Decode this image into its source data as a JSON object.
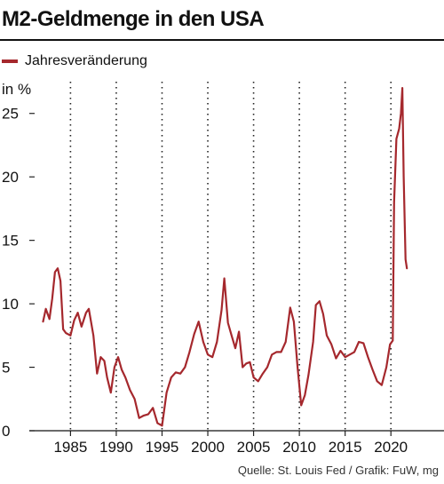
{
  "header": {
    "title": "M2-Geldmenge in den USA"
  },
  "footer": {
    "source": "Quelle: St. Louis Fed / Grafik: FuW, mg"
  },
  "chart_data": {
    "type": "line",
    "title": "M2-Geldmenge in den USA",
    "ylabel": "in %",
    "xlabel": "",
    "xlim": [
      1980.5,
      2025.8
    ],
    "ylim": [
      0,
      27.5
    ],
    "x_ticks": [
      "1985",
      "1990",
      "1995",
      "2000",
      "2005",
      "2010",
      "2015",
      "2020"
    ],
    "y_ticks": [
      "0",
      "5",
      "10",
      "15",
      "20",
      "25"
    ],
    "grid": "vertical-dotted",
    "legend_position": "top-left",
    "color": "#a5282d",
    "series": [
      {
        "name": "Jahresveränderung",
        "points": [
          [
            1982.0,
            8.6
          ],
          [
            1982.3,
            9.6
          ],
          [
            1982.7,
            8.8
          ],
          [
            1983.0,
            10.4
          ],
          [
            1983.3,
            12.5
          ],
          [
            1983.6,
            12.8
          ],
          [
            1983.9,
            11.8
          ],
          [
            1984.2,
            8.0
          ],
          [
            1984.5,
            7.7
          ],
          [
            1985.0,
            7.5
          ],
          [
            1985.4,
            8.7
          ],
          [
            1985.8,
            9.3
          ],
          [
            1986.2,
            8.2
          ],
          [
            1986.7,
            9.3
          ],
          [
            1987.0,
            9.6
          ],
          [
            1987.5,
            7.5
          ],
          [
            1987.9,
            4.5
          ],
          [
            1988.3,
            5.8
          ],
          [
            1988.7,
            5.5
          ],
          [
            1989.0,
            4.2
          ],
          [
            1989.4,
            3.0
          ],
          [
            1989.8,
            5.0
          ],
          [
            1990.2,
            5.8
          ],
          [
            1990.6,
            4.8
          ],
          [
            1991.0,
            4.2
          ],
          [
            1991.5,
            3.2
          ],
          [
            1992.0,
            2.5
          ],
          [
            1992.5,
            1.0
          ],
          [
            1993.0,
            1.2
          ],
          [
            1993.5,
            1.3
          ],
          [
            1994.0,
            1.8
          ],
          [
            1994.5,
            0.6
          ],
          [
            1995.0,
            0.4
          ],
          [
            1995.5,
            3.0
          ],
          [
            1996.0,
            4.2
          ],
          [
            1996.5,
            4.6
          ],
          [
            1997.0,
            4.5
          ],
          [
            1997.5,
            5.0
          ],
          [
            1998.0,
            6.2
          ],
          [
            1998.5,
            7.6
          ],
          [
            1999.0,
            8.6
          ],
          [
            1999.5,
            7.0
          ],
          [
            2000.0,
            6.0
          ],
          [
            2000.5,
            5.8
          ],
          [
            2001.0,
            7.0
          ],
          [
            2001.5,
            9.5
          ],
          [
            2001.8,
            12.0
          ],
          [
            2002.2,
            8.5
          ],
          [
            2002.6,
            7.5
          ],
          [
            2003.0,
            6.5
          ],
          [
            2003.4,
            7.8
          ],
          [
            2003.8,
            5.0
          ],
          [
            2004.2,
            5.3
          ],
          [
            2004.6,
            5.4
          ],
          [
            2005.0,
            4.2
          ],
          [
            2005.5,
            3.9
          ],
          [
            2006.0,
            4.5
          ],
          [
            2006.5,
            5.0
          ],
          [
            2007.0,
            6.0
          ],
          [
            2007.5,
            6.2
          ],
          [
            2008.0,
            6.2
          ],
          [
            2008.5,
            7.0
          ],
          [
            2009.0,
            9.7
          ],
          [
            2009.4,
            8.6
          ],
          [
            2009.8,
            5.0
          ],
          [
            2010.2,
            2.0
          ],
          [
            2010.6,
            2.8
          ],
          [
            2011.0,
            4.4
          ],
          [
            2011.5,
            7.0
          ],
          [
            2011.8,
            9.9
          ],
          [
            2012.2,
            10.2
          ],
          [
            2012.6,
            9.2
          ],
          [
            2013.0,
            7.5
          ],
          [
            2013.5,
            6.8
          ],
          [
            2014.0,
            5.7
          ],
          [
            2014.5,
            6.3
          ],
          [
            2015.0,
            5.8
          ],
          [
            2015.5,
            6.0
          ],
          [
            2016.0,
            6.2
          ],
          [
            2016.5,
            7.0
          ],
          [
            2017.0,
            6.9
          ],
          [
            2017.5,
            5.8
          ],
          [
            2018.0,
            4.8
          ],
          [
            2018.5,
            3.9
          ],
          [
            2019.0,
            3.6
          ],
          [
            2019.5,
            5.0
          ],
          [
            2019.9,
            6.8
          ],
          [
            2020.2,
            7.1
          ],
          [
            2020.35,
            18.0
          ],
          [
            2020.6,
            23.0
          ],
          [
            2020.9,
            23.8
          ],
          [
            2021.1,
            25.0
          ],
          [
            2021.25,
            27.0
          ],
          [
            2021.4,
            20.0
          ],
          [
            2021.6,
            13.5
          ],
          [
            2021.75,
            12.8
          ]
        ]
      }
    ]
  }
}
